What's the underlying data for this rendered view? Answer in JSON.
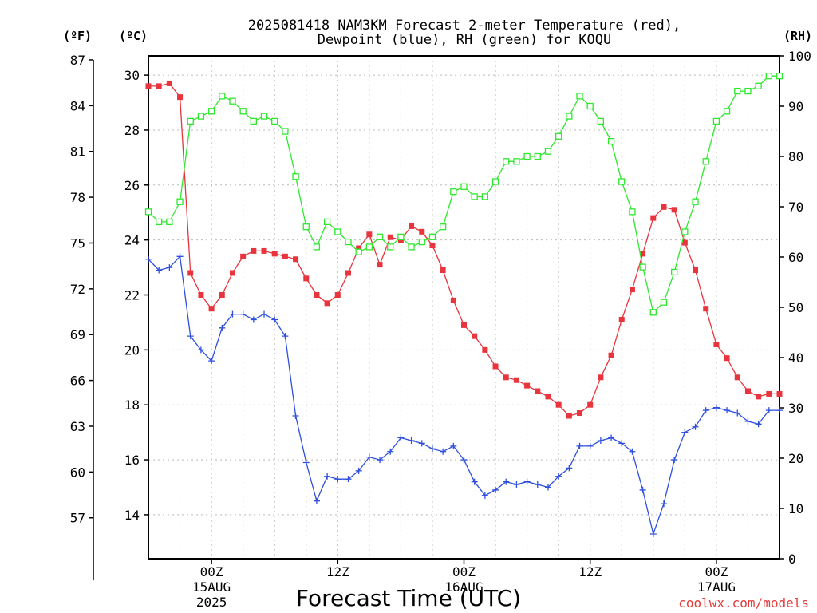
{
  "chart_data": {
    "type": "line",
    "title": "2025081418 NAM3KM Forecast 2-meter Temperature (red),",
    "subtitle": "Dewpoint (blue), RH (green) for KOQU",
    "xlabel": "Forecast Time (UTC)",
    "watermark": "coolwx.com/models",
    "axis_labels": {
      "fahrenheit": "(ºF)",
      "celsius": "(ºC)",
      "rh": "(RH)"
    },
    "x_unit": "forecast hour from 2025081418",
    "x_range": [
      0,
      60
    ],
    "x_ticks": [
      {
        "x": 6,
        "label": "00Z",
        "sub1": "15AUG",
        "sub2": "2025"
      },
      {
        "x": 18,
        "label": "12Z",
        "sub1": "",
        "sub2": ""
      },
      {
        "x": 30,
        "label": "00Z",
        "sub1": "16AUG",
        "sub2": ""
      },
      {
        "x": 42,
        "label": "12Z",
        "sub1": "",
        "sub2": ""
      },
      {
        "x": 54,
        "label": "00Z",
        "sub1": "17AUG",
        "sub2": ""
      }
    ],
    "c_range": [
      12.4,
      30.7
    ],
    "c_ticks": [
      14,
      16,
      18,
      20,
      22,
      24,
      26,
      28,
      30
    ],
    "f_ticks": [
      57,
      60,
      63,
      66,
      69,
      72,
      75,
      78,
      81,
      84,
      87
    ],
    "f_axis_bottom": 52.9,
    "rh_range": [
      0,
      100
    ],
    "rh_ticks": [
      0,
      10,
      20,
      30,
      40,
      50,
      60,
      70,
      80,
      90,
      100
    ],
    "grid": true,
    "series": [
      {
        "name": "Temperature",
        "axis": "celsius",
        "color": "#e8343c",
        "marker": "filled-square",
        "x": [
          0,
          1,
          2,
          3,
          4,
          5,
          6,
          7,
          8,
          9,
          10,
          11,
          12,
          13,
          14,
          15,
          16,
          17,
          18,
          19,
          20,
          21,
          22,
          23,
          24,
          25,
          26,
          27,
          28,
          29,
          30,
          31,
          32,
          33,
          34,
          35,
          36,
          37,
          38,
          39,
          40,
          41,
          42,
          43,
          44,
          45,
          46,
          47,
          48,
          49,
          50,
          51,
          52,
          53,
          54,
          55,
          56,
          57,
          58,
          59,
          60
        ],
        "values": [
          29.6,
          29.6,
          29.7,
          29.2,
          22.8,
          22.0,
          21.5,
          22.0,
          22.8,
          23.4,
          23.6,
          23.6,
          23.5,
          23.4,
          23.3,
          22.6,
          22.0,
          21.7,
          22.0,
          22.8,
          23.7,
          24.2,
          23.1,
          24.1,
          24.0,
          24.5,
          24.3,
          23.8,
          22.9,
          21.8,
          20.9,
          20.5,
          20.0,
          19.4,
          19.0,
          18.9,
          18.7,
          18.5,
          18.3,
          18.0,
          17.6,
          17.7,
          18.0,
          19.0,
          19.8,
          21.1,
          22.2,
          23.5,
          24.8,
          25.2,
          25.1,
          23.9,
          22.9,
          21.5,
          20.2,
          19.7,
          19.0,
          18.5,
          18.3,
          18.4,
          18.4
        ]
      },
      {
        "name": "Dewpoint",
        "axis": "celsius",
        "color": "#2e4fe0",
        "marker": "plus",
        "x": [
          0,
          1,
          2,
          3,
          4,
          5,
          6,
          7,
          8,
          9,
          10,
          11,
          12,
          13,
          14,
          15,
          16,
          17,
          18,
          19,
          20,
          21,
          22,
          23,
          24,
          25,
          26,
          27,
          28,
          29,
          30,
          31,
          32,
          33,
          34,
          35,
          36,
          37,
          38,
          39,
          40,
          41,
          42,
          43,
          44,
          45,
          46,
          47,
          48,
          49,
          50,
          51,
          52,
          53,
          54,
          55,
          56,
          57,
          58,
          59,
          60
        ],
        "values": [
          23.3,
          22.9,
          23.0,
          23.4,
          20.5,
          20.0,
          19.6,
          20.8,
          21.3,
          21.3,
          21.1,
          21.3,
          21.1,
          20.5,
          17.6,
          15.9,
          14.5,
          15.4,
          15.3,
          15.3,
          15.6,
          16.1,
          16.0,
          16.3,
          16.8,
          16.7,
          16.6,
          16.4,
          16.3,
          16.5,
          16.0,
          15.2,
          14.7,
          14.9,
          15.2,
          15.1,
          15.2,
          15.1,
          15.0,
          15.4,
          15.7,
          16.5,
          16.5,
          16.7,
          16.8,
          16.6,
          16.3,
          14.9,
          13.3,
          14.4,
          16.0,
          17.0,
          17.2,
          17.8,
          17.9,
          17.8,
          17.7,
          17.4,
          17.3,
          17.8,
          17.8
        ]
      },
      {
        "name": "RH",
        "axis": "rh",
        "color": "#2ee82e",
        "marker": "open-square",
        "x": [
          0,
          1,
          2,
          3,
          4,
          5,
          6,
          7,
          8,
          9,
          10,
          11,
          12,
          13,
          14,
          15,
          16,
          17,
          18,
          19,
          20,
          21,
          22,
          23,
          24,
          25,
          26,
          27,
          28,
          29,
          30,
          31,
          32,
          33,
          34,
          35,
          36,
          37,
          38,
          39,
          40,
          41,
          42,
          43,
          44,
          45,
          46,
          47,
          48,
          49,
          50,
          51,
          52,
          53,
          54,
          55,
          56,
          57,
          58,
          59,
          60
        ],
        "values": [
          69,
          67,
          67,
          71,
          87,
          88,
          89,
          92,
          91,
          89,
          87,
          88,
          87,
          85,
          76,
          66,
          62,
          67,
          65,
          63,
          61,
          62,
          64,
          62,
          64,
          62,
          63,
          64,
          66,
          73,
          74,
          72,
          72,
          75,
          79,
          79,
          80,
          80,
          81,
          84,
          88,
          92,
          90,
          87,
          83,
          75,
          69,
          58,
          49,
          51,
          57,
          65,
          71,
          79,
          87,
          89,
          93,
          93,
          94,
          96,
          96
        ]
      }
    ]
  }
}
